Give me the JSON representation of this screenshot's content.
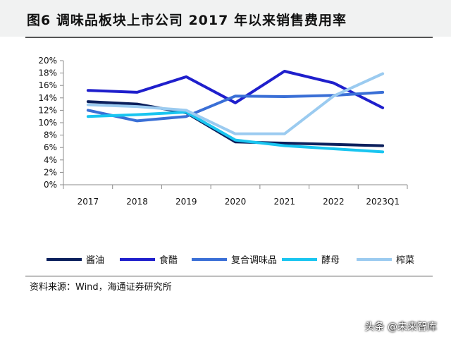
{
  "header": {
    "title": "图6  调味品板块上市公司 2017 年以来销售费用率"
  },
  "source": {
    "text": "资料来源：Wind，海通证券研究所"
  },
  "watermark": {
    "text": "头条 @未来智库"
  },
  "chart_data": {
    "type": "line",
    "title": "",
    "xlabel": "",
    "ylabel": "",
    "categories": [
      "2017",
      "2018",
      "2019",
      "2020",
      "2021",
      "2022",
      "2023Q1"
    ],
    "ylim": [
      0,
      20
    ],
    "yticks": [
      0,
      2,
      4,
      6,
      8,
      10,
      12,
      14,
      16,
      18,
      20
    ],
    "ytick_labels": [
      "0%",
      "2%",
      "4%",
      "6%",
      "8%",
      "10%",
      "12%",
      "14%",
      "16%",
      "18%",
      "20%"
    ],
    "grid": false,
    "legend_position": "bottom",
    "series": [
      {
        "name": "酱油",
        "color": "#0b1f5c",
        "values": [
          13.4,
          13.0,
          11.6,
          6.9,
          6.7,
          6.5,
          6.3
        ]
      },
      {
        "name": "食醋",
        "color": "#1f1fcc",
        "values": [
          15.2,
          14.9,
          17.4,
          13.2,
          18.3,
          16.4,
          12.4
        ]
      },
      {
        "name": "复合调味品",
        "color": "#3a6fd6",
        "values": [
          12.0,
          10.3,
          11.0,
          14.3,
          14.2,
          14.4,
          14.9
        ]
      },
      {
        "name": "酵母",
        "color": "#19c5f0",
        "values": [
          11.0,
          11.3,
          11.7,
          7.2,
          6.3,
          5.8,
          5.3
        ]
      },
      {
        "name": "榨菜",
        "color": "#9bcbf0",
        "values": [
          12.9,
          12.6,
          12.0,
          8.2,
          8.2,
          14.3,
          17.9
        ]
      }
    ]
  }
}
